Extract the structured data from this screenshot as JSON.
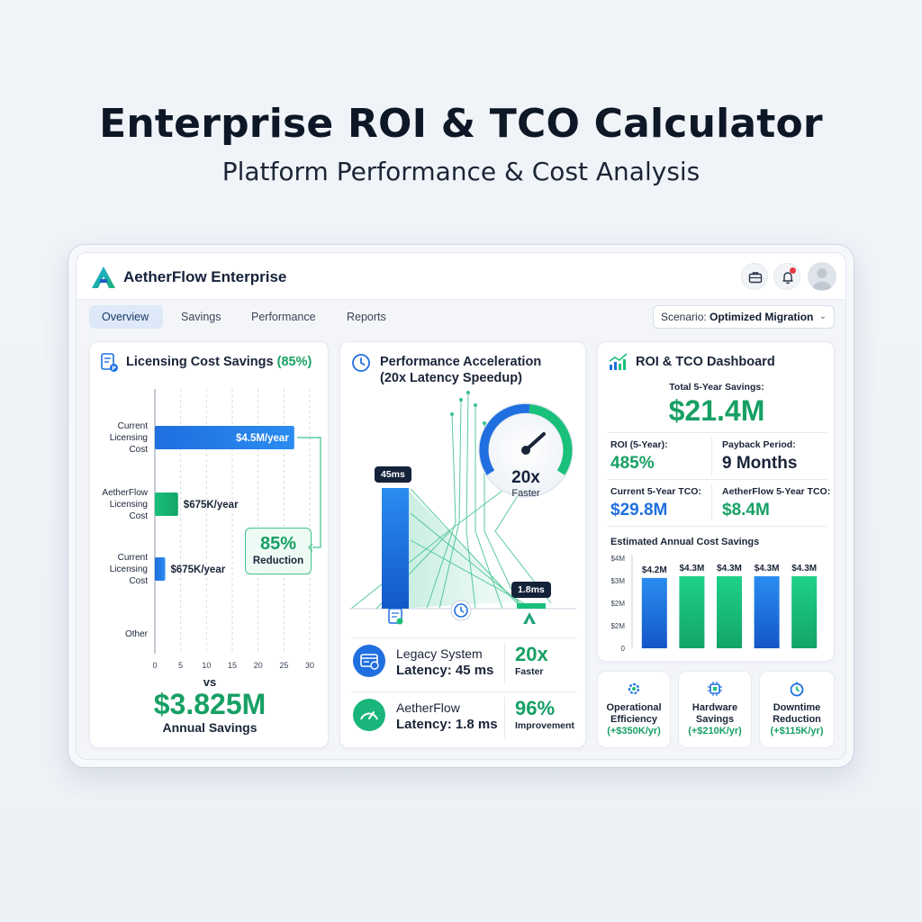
{
  "hero": {
    "title": "Enterprise ROI & TCO Calculator",
    "subtitle": "Platform Performance & Cost Analysis"
  },
  "app": {
    "brand": "AetherFlow Enterprise",
    "icons": [
      "briefcase-icon",
      "bell-icon",
      "user-avatar"
    ]
  },
  "tabs": [
    "Overview",
    "Savings",
    "Performance",
    "Reports"
  ],
  "scenario": {
    "prefix": "Scenario:",
    "value": "Optimized Migration"
  },
  "licensing": {
    "title": "Licensing Cost Savings",
    "title_pct": "(85%)",
    "rows": [
      {
        "label_lines": [
          "Current",
          "Licensing",
          "Cost"
        ],
        "value": 27,
        "value_label": "$4.5M/year"
      },
      {
        "label_lines": [
          "AetherFlow",
          "Licensing",
          "Cost"
        ],
        "value": 4.5,
        "value_label": "$675K/year"
      },
      {
        "label_lines": [
          "Current",
          "Licensing",
          "Cost"
        ],
        "value": 2,
        "value_label": "$675K/year"
      },
      {
        "label_lines": [
          "Other"
        ],
        "value": 0,
        "value_label": ""
      }
    ],
    "x_ticks": [
      "0",
      "5",
      "10",
      "15",
      "20",
      "25",
      "30"
    ],
    "x_max": 30,
    "reduction_pct": "85%",
    "reduction_label": "Reduction",
    "vs": "vs",
    "savings_value": "$3.825M",
    "savings_label": "Annual Savings"
  },
  "performance": {
    "title_line1": "Performance Acceleration",
    "title_line2": "(20x Latency Speedup)",
    "legacy_badge": "45ms",
    "aether_badge": "1.8ms",
    "gauge_value": "20x",
    "gauge_label": "Faster",
    "legacy": {
      "label": "Legacy System",
      "latency": "Latency: 45 ms",
      "metric": "20x",
      "metric_label": "Faster"
    },
    "aether": {
      "label": "AetherFlow",
      "latency": "Latency: 1.8 ms",
      "metric": "96%",
      "metric_label": "Improvement"
    }
  },
  "roi": {
    "title": "ROI & TCO Dashboard",
    "total_label": "Total 5-Year Savings:",
    "total_value": "$21.4M",
    "roi_label": "ROI (5-Year):",
    "roi_value": "485%",
    "payback_label": "Payback Period:",
    "payback_value": "9 Months",
    "current_tco_label": "Current 5-Year TCO:",
    "current_tco_value": "$29.8M",
    "aether_tco_label": "AetherFlow 5-Year TCO:",
    "aether_tco_value": "$8.4M",
    "chart_title": "Estimated Annual Cost Savings"
  },
  "chart_data": {
    "type": "bar",
    "title": "Estimated Annual Cost Savings",
    "categories": [
      "",
      "",
      "",
      "",
      ""
    ],
    "values": [
      4.2,
      4.3,
      4.3,
      4.3,
      4.3
    ],
    "data_labels": [
      "$4.2M",
      "$4.3M",
      "$4.3M",
      "$4.3M",
      "$4.3M"
    ],
    "y_ticks": [
      "$4M",
      "$3M",
      "$2M",
      "$2M",
      "0"
    ],
    "ylim": [
      0,
      4.3
    ],
    "bar_colors": [
      "#1f6fe0",
      "#19c07a",
      "#19c07a",
      "#1f6fe0",
      "#19c07a"
    ]
  },
  "minis": [
    {
      "label_lines": [
        "Operational",
        "Efficiency"
      ],
      "value": "(+$350K/yr)",
      "icon": "gear-icon"
    },
    {
      "label_lines": [
        "Hardware",
        "Savings"
      ],
      "value": "(+$210K/yr)",
      "icon": "chip-icon"
    },
    {
      "label_lines": [
        "Downtime",
        "Reduction"
      ],
      "value": "(+$115K/yr)",
      "icon": "stopwatch-icon"
    }
  ],
  "colors": {
    "blue": "#1f6fe0",
    "green": "#17a064",
    "accent_green": "#19c07a"
  }
}
